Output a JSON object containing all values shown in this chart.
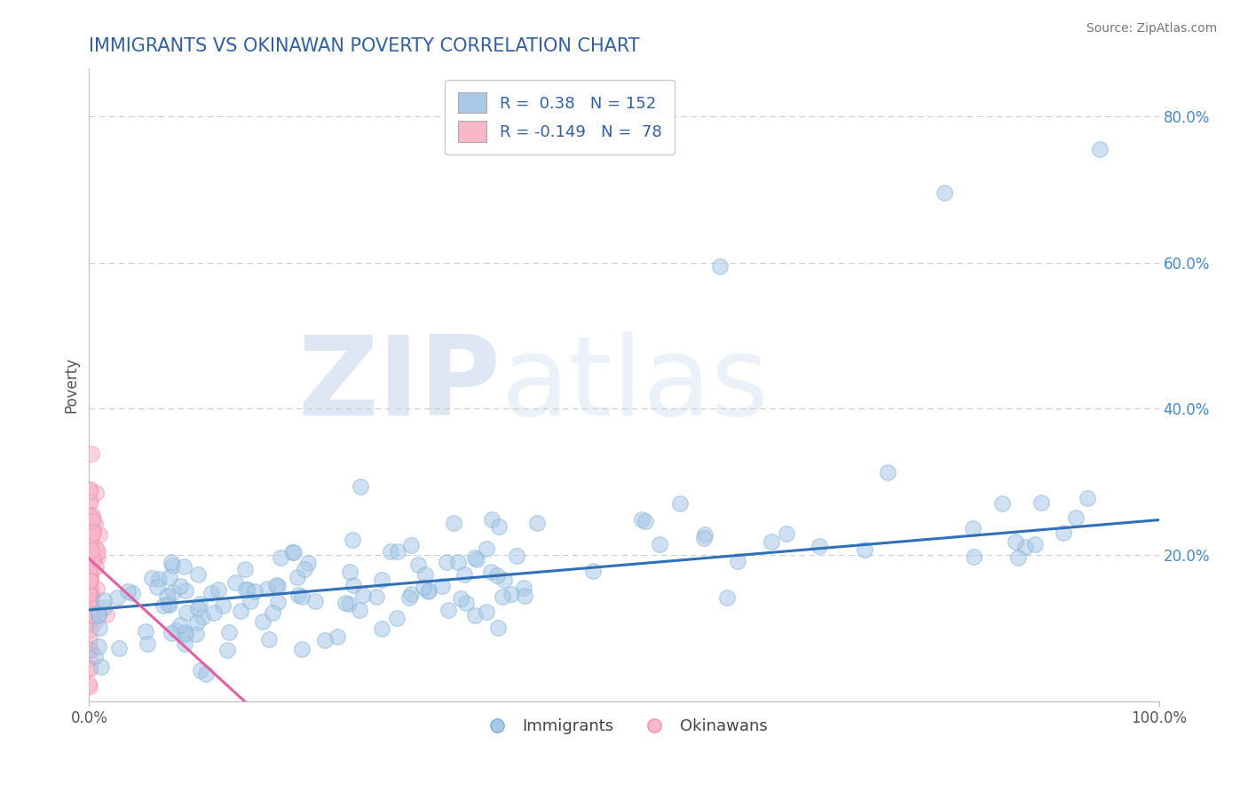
{
  "title": "IMMIGRANTS VS OKINAWAN POVERTY CORRELATION CHART",
  "source_text": "Source: ZipAtlas.com",
  "ylabel": "Poverty",
  "xlim": [
    0,
    1.0
  ],
  "ylim": [
    0,
    0.865
  ],
  "ytick_values": [
    0.2,
    0.4,
    0.6,
    0.8
  ],
  "ytick_labels": [
    "20.0%",
    "40.0%",
    "60.0%",
    "80.0%"
  ],
  "blue_R": 0.38,
  "blue_N": 152,
  "pink_R": -0.149,
  "pink_N": 78,
  "blue_color": "#a8c8e8",
  "pink_color": "#f8b8c8",
  "blue_edge_color": "#7aafd4",
  "pink_edge_color": "#f090b0",
  "blue_line_color": "#3070b8",
  "pink_line_color": "#e060a0",
  "watermark_zip": "ZIP",
  "watermark_atlas": "atlas",
  "background_color": "#ffffff",
  "grid_color": "#cccccc",
  "title_color": "#3060a0",
  "tick_color": "#4488cc",
  "seed": 7
}
